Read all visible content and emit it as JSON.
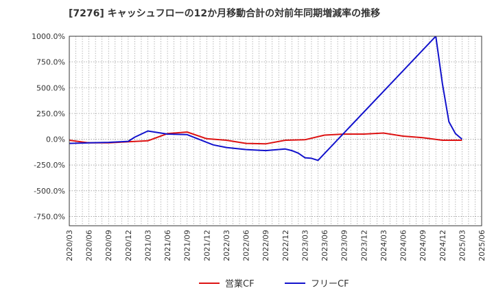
{
  "chart_data": {
    "type": "line",
    "title": "[7276]  キャッシュフローの12か月移動合計の対前年同期増減率の推移",
    "xlabel": "",
    "ylabel": "",
    "ylim": [
      -840,
      1000
    ],
    "y_ticks": [
      1000,
      750,
      500,
      250,
      0,
      -250,
      -500,
      -750
    ],
    "y_tick_labels": [
      "1000.0%",
      "750.0%",
      "500.0%",
      "250.0%",
      "0.0%",
      "-250.0%",
      "-500.0%",
      "-750.0%"
    ],
    "x_tick_labels": [
      "2020/03",
      "2020/06",
      "2020/09",
      "2020/12",
      "2021/03",
      "2021/06",
      "2021/09",
      "2021/12",
      "2022/03",
      "2022/06",
      "2022/09",
      "2022/12",
      "2023/03",
      "2023/06",
      "2023/09",
      "2023/12",
      "2024/03",
      "2024/06",
      "2024/09",
      "2024/12",
      "2025/03",
      "2025/06"
    ],
    "grid": true,
    "legend_position": "bottom",
    "series": [
      {
        "name": "営業CF",
        "color": "#dd1111",
        "x": [
          "2020/03",
          "2020/06",
          "2020/09",
          "2020/12",
          "2021/03",
          "2021/06",
          "2021/09",
          "2021/12",
          "2022/03",
          "2022/06",
          "2022/09",
          "2022/12",
          "2023/03",
          "2023/06",
          "2023/09",
          "2023/12",
          "2024/03",
          "2024/06",
          "2024/09",
          "2024/12",
          "2025/03"
        ],
        "values": [
          -10,
          -35,
          -35,
          -25,
          -15,
          55,
          70,
          5,
          -10,
          -40,
          -45,
          -10,
          -5,
          40,
          50,
          50,
          60,
          30,
          15,
          -10,
          -10
        ]
      },
      {
        "name": "フリーCF",
        "color": "#1111cc",
        "x": [
          "2020/03",
          "2020/06",
          "2020/09",
          "2020/12",
          "2021/01",
          "2021/03",
          "2021/06",
          "2021/09",
          "2021/12",
          "2022/01",
          "2022/03",
          "2022/06",
          "2022/09",
          "2022/12",
          "2023/01",
          "2023/02",
          "2023/03",
          "2023/04",
          "2023/05",
          "2024/11",
          "2024/12",
          "2025/01",
          "2025/02",
          "2025/03"
        ],
        "values": [
          -40,
          -35,
          -30,
          -20,
          20,
          80,
          50,
          45,
          -30,
          -55,
          -80,
          -100,
          -110,
          -95,
          -110,
          -135,
          -180,
          -185,
          -205,
          1000,
          540,
          170,
          55,
          0
        ]
      }
    ]
  }
}
